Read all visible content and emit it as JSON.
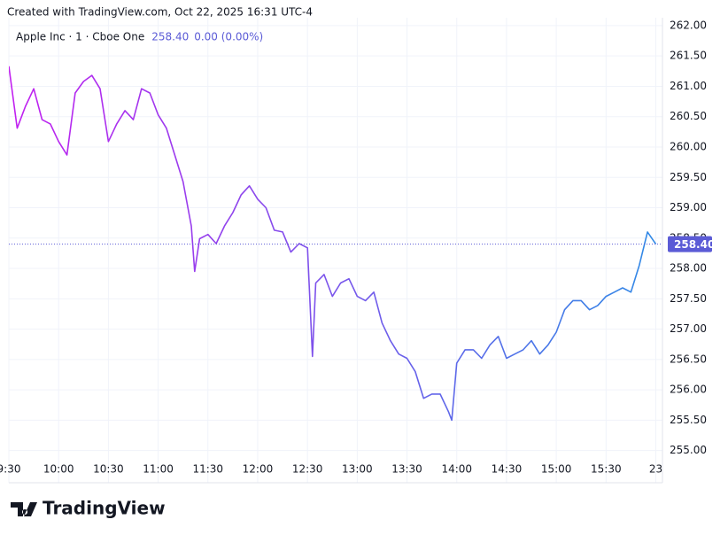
{
  "header": {
    "credit": "Created with TradingView.com, Oct 22, 2025 16:31 UTC-4"
  },
  "legend": {
    "symbol": "Apple Inc · 1 · Cboe One",
    "change": "0.00 (0.00%)"
  },
  "footer": {
    "logo": "TradingView"
  },
  "chart_data": {
    "type": "line",
    "x": [
      "9:30",
      "9:35",
      "9:40",
      "9:45",
      "9:50",
      "9:55",
      "10:00",
      "10:05",
      "10:10",
      "10:15",
      "10:20",
      "10:25",
      "10:30",
      "10:35",
      "10:40",
      "10:45",
      "10:50",
      "10:55",
      "11:00",
      "11:05",
      "11:10",
      "11:15",
      "11:20",
      "11:22",
      "11:25",
      "11:30",
      "11:35",
      "11:40",
      "11:45",
      "11:50",
      "11:55",
      "12:00",
      "12:05",
      "12:10",
      "12:15",
      "12:20",
      "12:25",
      "12:30",
      "12:33",
      "12:35",
      "12:40",
      "12:45",
      "12:50",
      "12:55",
      "13:00",
      "13:05",
      "13:10",
      "13:15",
      "13:20",
      "13:25",
      "13:30",
      "13:35",
      "13:40",
      "13:45",
      "13:50",
      "13:55",
      "13:57",
      "14:00",
      "14:05",
      "14:10",
      "14:15",
      "14:20",
      "14:25",
      "14:30",
      "14:35",
      "14:40",
      "14:45",
      "14:50",
      "14:55",
      "15:00",
      "15:05",
      "15:10",
      "15:15",
      "15:20",
      "15:25",
      "15:30",
      "15:35",
      "15:40",
      "15:45",
      "15:50",
      "15:55",
      "16:00"
    ],
    "series": [
      {
        "name": "Apple Inc",
        "colors": [
          "#c21ff0",
          "#2f8be6"
        ],
        "values": [
          261.33,
          260.31,
          260.67,
          260.96,
          260.45,
          260.38,
          260.09,
          259.87,
          260.89,
          261.08,
          261.18,
          260.96,
          260.09,
          260.38,
          260.6,
          260.45,
          260.96,
          260.89,
          260.53,
          260.31,
          259.87,
          259.43,
          258.7,
          257.95,
          258.49,
          258.56,
          258.41,
          258.7,
          258.92,
          259.21,
          259.36,
          259.14,
          259.0,
          258.63,
          258.6,
          258.27,
          258.41,
          258.34,
          256.55,
          257.76,
          257.9,
          257.54,
          257.76,
          257.83,
          257.54,
          257.47,
          257.61,
          257.1,
          256.81,
          256.59,
          256.52,
          256.3,
          255.86,
          255.93,
          255.93,
          255.64,
          255.5,
          256.44,
          256.66,
          256.66,
          256.52,
          256.74,
          256.88,
          256.52,
          256.59,
          256.66,
          256.81,
          256.59,
          256.74,
          256.95,
          257.32,
          257.47,
          257.47,
          257.32,
          257.39,
          257.54,
          257.61,
          257.68,
          257.61,
          258.05,
          258.6,
          258.4
        ]
      }
    ],
    "last_price": {
      "value": 258.4,
      "label": "258.40",
      "color": "#5b5bd6"
    },
    "xlim": [
      "9:30",
      "16:04"
    ],
    "xticks": [
      "9:30",
      "10:00",
      "10:30",
      "11:00",
      "11:30",
      "12:00",
      "12:30",
      "13:00",
      "13:30",
      "14:00",
      "14:30",
      "15:00",
      "15:30",
      {
        "value": "16:00",
        "label": "23"
      }
    ],
    "ylim": [
      254.47,
      262.13
    ],
    "yticks": [
      {
        "value": 255,
        "label": "255.00"
      },
      {
        "value": 255.5,
        "label": "255.50"
      },
      {
        "value": 256,
        "label": "256.00"
      },
      {
        "value": 256.5,
        "label": "256.50"
      },
      {
        "value": 257,
        "label": "257.00"
      },
      {
        "value": 257.5,
        "label": "257.50"
      },
      {
        "value": 258,
        "label": "258.00"
      },
      {
        "value": 258.5,
        "label": "258.50"
      },
      {
        "value": 259,
        "label": "259.00"
      },
      {
        "value": 259.5,
        "label": "259.50"
      },
      {
        "value": 260,
        "label": "260.00"
      },
      {
        "value": 260.5,
        "label": "260.50"
      },
      {
        "value": 261,
        "label": "261.00"
      },
      {
        "value": 261.5,
        "label": "261.50"
      },
      {
        "value": 262,
        "label": "262.00"
      }
    ],
    "grid": true
  }
}
